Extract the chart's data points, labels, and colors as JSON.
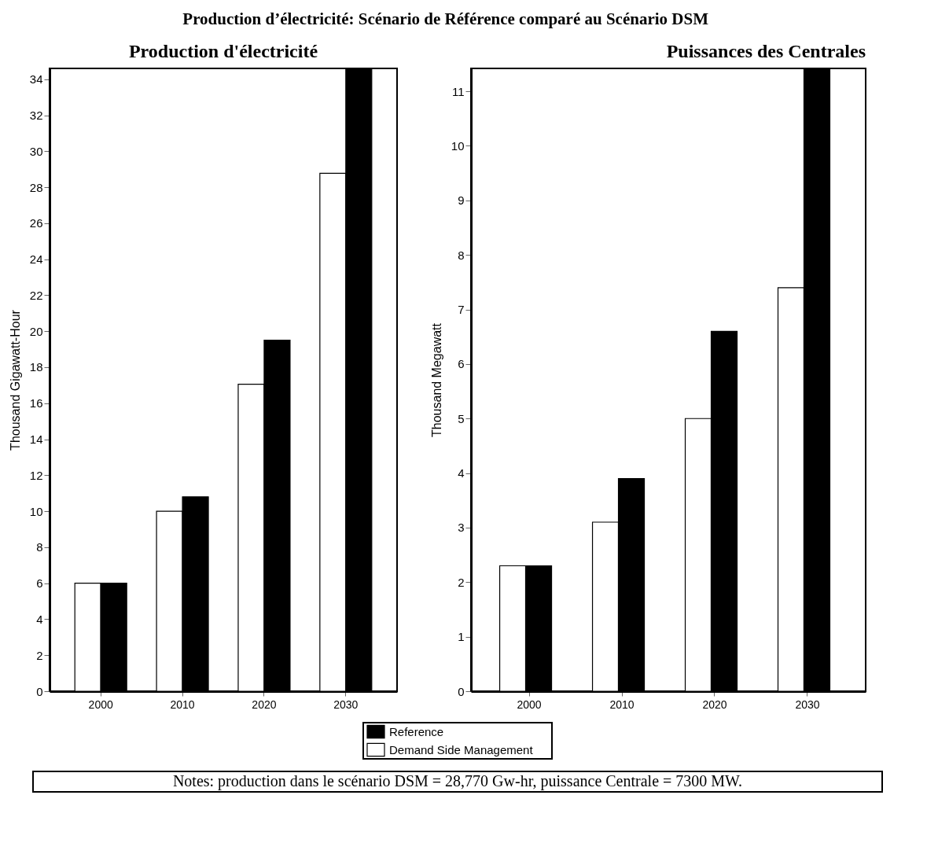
{
  "chart_data": [
    {
      "type": "bar",
      "title": "Production d'électricité",
      "ylabel": "Thousand Gigawatt-Hour",
      "categories": [
        "2000",
        "2010",
        "2020",
        "2030"
      ],
      "series": [
        {
          "name": "Demand Side Management",
          "color": "#ffffff",
          "values": [
            6,
            10,
            17.05,
            28.77
          ]
        },
        {
          "name": "Reference",
          "color": "#000000",
          "values": [
            6,
            10.8,
            19.5,
            34.6
          ]
        }
      ],
      "ylim": [
        0,
        34.6
      ],
      "yticks": [
        0,
        2,
        4,
        6,
        8,
        10,
        12,
        14,
        16,
        18,
        20,
        22,
        24,
        26,
        28,
        30,
        32,
        34
      ],
      "grid": false,
      "legend": "bottom",
      "annotations": [
        "Production d’électricité: Scénario de Référence comparé au Scénario DSM"
      ]
    },
    {
      "type": "bar",
      "title": "Puissances des Centrales",
      "ylabel": "Thousand Megawatt",
      "categories": [
        "2000",
        "2010",
        "2020",
        "2030"
      ],
      "series": [
        {
          "name": "Demand Side Management",
          "color": "#ffffff",
          "values": [
            2.3,
            3.1,
            5.0,
            7.4
          ]
        },
        {
          "name": "Reference",
          "color": "#000000",
          "values": [
            2.3,
            3.9,
            6.6,
            11.42
          ]
        }
      ],
      "ylim": [
        0,
        11.42
      ],
      "yticks": [
        0,
        1,
        2,
        3,
        4,
        5,
        6,
        7,
        8,
        9,
        10,
        11
      ],
      "grid": false,
      "legend": "bottom",
      "annotations": [
        "Notes: production dans le scénario DSM = 28,770 Gw-hr, puissance Centrale = 7300 MW."
      ]
    }
  ]
}
